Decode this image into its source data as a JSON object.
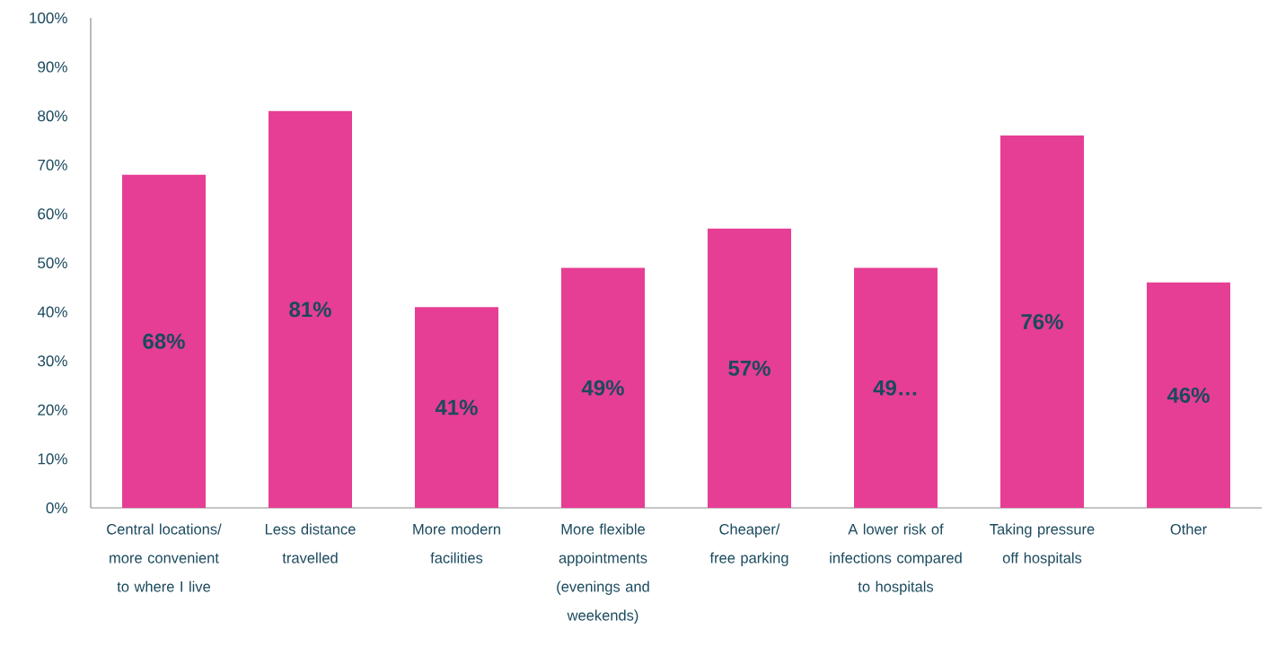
{
  "chart_data": {
    "type": "bar",
    "categories": [
      "Central locations/ more convenient to where I live",
      "Less distance travelled",
      "More modern facilities",
      "More flexible appointments (evenings and weekends)",
      "Cheaper/ free parking",
      "A lower risk of infections compared to hospitals",
      "Taking pressure off hospitals",
      "Other"
    ],
    "values": [
      68,
      81,
      41,
      49,
      57,
      49,
      76,
      46
    ],
    "value_labels": [
      "68%",
      "81%",
      "41%",
      "49%",
      "57%",
      "49…",
      "76%",
      "46%"
    ],
    "color": "#e63e94",
    "ylim": [
      0,
      100
    ],
    "yticks": [
      {
        "value": 0,
        "label": "0%"
      },
      {
        "value": 10,
        "label": "10%"
      },
      {
        "value": 20,
        "label": "20%"
      },
      {
        "value": 30,
        "label": "30%"
      },
      {
        "value": 40,
        "label": "40%"
      },
      {
        "value": 50,
        "label": "50%"
      },
      {
        "value": 60,
        "label": "60%"
      },
      {
        "value": 70,
        "label": "70%"
      },
      {
        "value": 80,
        "label": "80%"
      },
      {
        "value": 90,
        "label": "90%"
      },
      {
        "value": 100,
        "label": "100%"
      }
    ],
    "grid": false
  }
}
